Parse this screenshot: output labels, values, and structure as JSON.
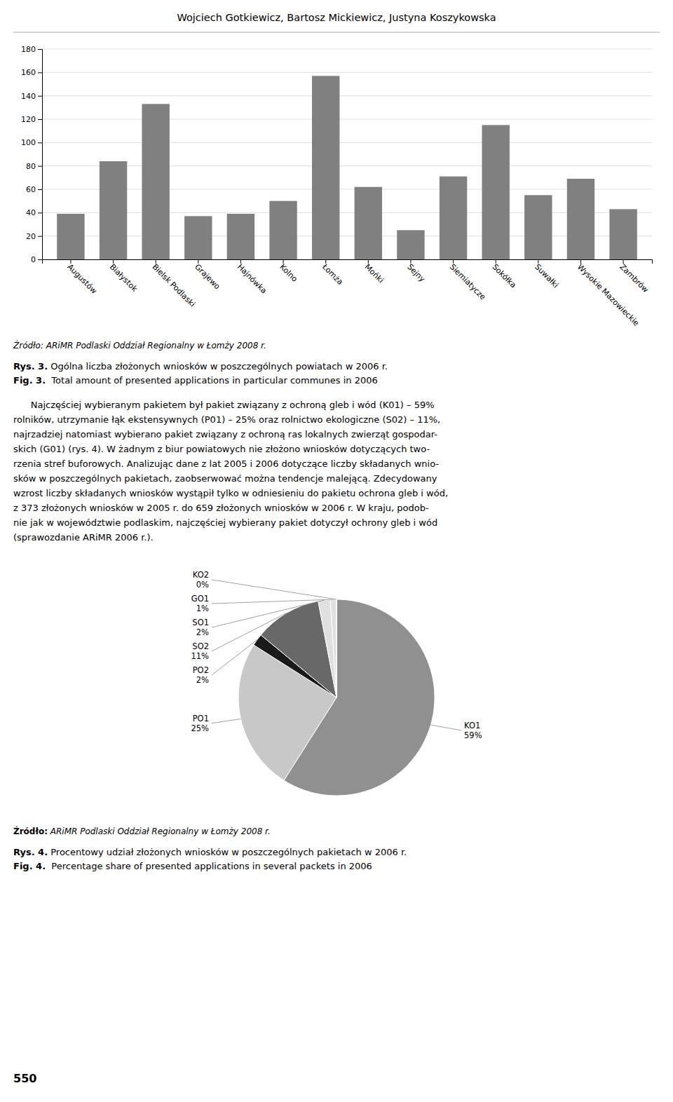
{
  "page_title": "Wojciech Gotkiewicz, Bartosz Mickiewicz, Justyna Koszykowska",
  "body_text": [
    "      Najczęściej wybieranym pakietem był pakiet związany z ochroną gleb i wód (K01) – 59%",
    "rolników, utrzymanie łąk ekstensywnych (P01) – 25% oraz rolnictwo ekologiczne (S02) – 11%,",
    "najrzadziej natomiast wybierano pakiet związany z ochroną ras lokalnych zwierząt gospodar-",
    "skich (G01) (rys. 4). W żadnym z biur powiatowych nie złożono wniosków dotyczących two-",
    "rzenia stref buforowych. Analizując dane z lat 2005 i 2006 dotyczące liczby składanych wnio-",
    "sków w poszczególnych pakietach, zaobserwować można tendencje malejącą. Zdecydowany",
    "wzrost liczby składanych wniosków wystąpił tylko w odniesieniu do pakietu ochrona gleb i wód,",
    "z 373 złożonych wniosków w 2005 r. do 659 złożonych wniosków w 2006 r. W kraju, podob-",
    "nie jak w województwie podlaskim, najczęściej wybierany pakiet dotyczył ochrony gleb i wód",
    "(sprawozdanie ARiMR 2006 r.)."
  ],
  "page_number": "550",
  "chart_data": [
    {
      "type": "bar",
      "categories": [
        "Augustów",
        "Białystok",
        "Bielsk Podlaski",
        "Grajewo",
        "Hajnówka",
        "Kolno",
        "Łomża",
        "Mońki",
        "Sejny",
        "Siemiatycze",
        "Sokółka",
        "Suwałki",
        "Wysokie Mazowieckie",
        "Zambrów"
      ],
      "values": [
        39,
        84,
        133,
        37,
        39,
        50,
        157,
        62,
        25,
        71,
        115,
        55,
        69,
        43
      ],
      "color": "#808080",
      "ylim": [
        0,
        180
      ],
      "yticks": [
        0,
        20,
        40,
        60,
        80,
        100,
        120,
        140,
        160,
        180
      ],
      "grid": true,
      "source": "Źródło: ARiMR Podlaski Oddział Regionalny w Łomży 2008 r.",
      "captions": [
        {
          "label": "Rys. 3.",
          "text": " Ogólna liczba złożonych wniosków w poszczególnych powiatach w 2006 r."
        },
        {
          "label": "Fig. 3.",
          "text": "  Total amount of presented applications in particular communes in 2006"
        }
      ]
    },
    {
      "type": "pie",
      "categories": [
        "KO1",
        "PO1",
        "PO2",
        "SO2",
        "SO1",
        "GO1",
        "KO2"
      ],
      "values": [
        59,
        25,
        2,
        11,
        2,
        1,
        0
      ],
      "value_labels": [
        "59%",
        "25%",
        "2%",
        "11%",
        "2%",
        "1%",
        "0%"
      ],
      "data_labels": true,
      "colors": [
        "#909090",
        "#c8c8c8",
        "#1a1a1a",
        "#686868",
        "#e0e0e0",
        "#e0e0e0",
        "#e0e0e0"
      ],
      "source": {
        "label": "Źródło:",
        "text": " ARiMR Podlaski Oddział Regionalny w Łomży 2008 r."
      },
      "captions": [
        {
          "label": "Rys. 4.",
          "text": " Procentowy udział złożonych wniosków w poszczególnych pakietach w 2006 r."
        },
        {
          "label": "Fig. 4.",
          "text": "  Percentage share of presented applications in several packets in 2006"
        }
      ]
    }
  ]
}
